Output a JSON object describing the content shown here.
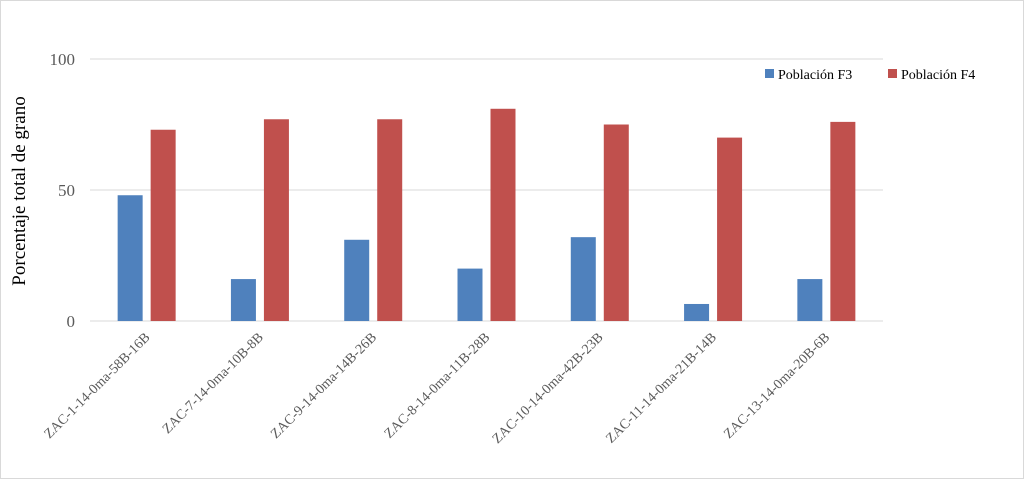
{
  "chart_data": {
    "type": "bar",
    "title": "",
    "xlabel": "",
    "ylabel": "Porcentaje total de grano",
    "ylim": [
      0,
      100
    ],
    "yticks": [
      0,
      50,
      100
    ],
    "grid": true,
    "legend_position": "top-right",
    "categories": [
      "ZAC-1-14-0ma-58B-16B",
      "ZAC-7-14-0ma-10B-8B",
      "ZAC-9-14-0ma-14B-26B",
      "ZAC-8-14-0ma-11B-28B",
      "ZAC-10-14-0ma-42B-23B",
      "ZAC-11-14-0ma-21B-14B",
      "ZAC-13-14-0ma-20B-6B"
    ],
    "series": [
      {
        "name": "Población F3",
        "color": "#4f81bd",
        "values": [
          48,
          16,
          31,
          20,
          32,
          6.5,
          16
        ]
      },
      {
        "name": "Población F4",
        "color": "#c0504d",
        "values": [
          73,
          77,
          77,
          81,
          75,
          70,
          76
        ]
      }
    ]
  }
}
